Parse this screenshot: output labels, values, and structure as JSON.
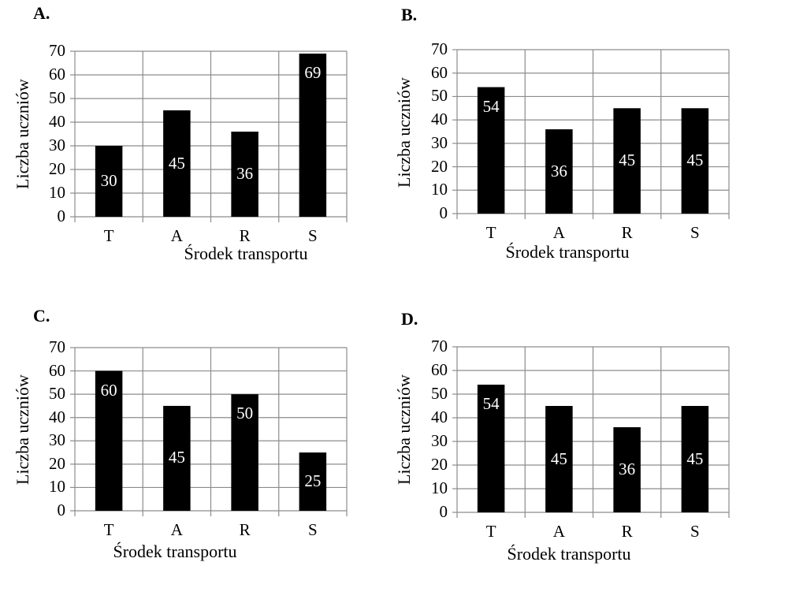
{
  "chart_data": [
    {
      "panel_label": "A.",
      "type": "bar",
      "categories": [
        "T",
        "A",
        "R",
        "S"
      ],
      "values": [
        30,
        45,
        36,
        69
      ],
      "data_labels": [
        "30",
        "45",
        "36",
        "69"
      ],
      "xlabel": "Środek transportu",
      "ylabel": "Liczba uczniów",
      "ylim": [
        0,
        70
      ],
      "yticks": [
        "0",
        "10",
        "20",
        "30",
        "40",
        "50",
        "60",
        "70"
      ],
      "grid": true,
      "bar_color": "#000000"
    },
    {
      "panel_label": "B.",
      "type": "bar",
      "categories": [
        "T",
        "A",
        "R",
        "S"
      ],
      "values": [
        54,
        36,
        45,
        45
      ],
      "data_labels": [
        "54",
        "36",
        "45",
        "45"
      ],
      "xlabel": "Środek transportu",
      "ylabel": "Liczba uczniów",
      "ylim": [
        0,
        70
      ],
      "yticks": [
        "0",
        "10",
        "20",
        "30",
        "40",
        "50",
        "60",
        "70"
      ],
      "grid": true,
      "bar_color": "#000000"
    },
    {
      "panel_label": "C.",
      "type": "bar",
      "categories": [
        "T",
        "A",
        "R",
        "S"
      ],
      "values": [
        60,
        45,
        50,
        25
      ],
      "data_labels": [
        "60",
        "45",
        "50",
        "25"
      ],
      "xlabel": "Środek transportu",
      "ylabel": "Liczba uczniów",
      "ylim": [
        0,
        70
      ],
      "yticks": [
        "0",
        "10",
        "20",
        "30",
        "40",
        "50",
        "60",
        "70"
      ],
      "grid": true,
      "bar_color": "#000000"
    },
    {
      "panel_label": "D.",
      "type": "bar",
      "categories": [
        "T",
        "A",
        "R",
        "S"
      ],
      "values": [
        54,
        45,
        36,
        45
      ],
      "data_labels": [
        "54",
        "45",
        "36",
        "45"
      ],
      "xlabel": "Środek transportu",
      "ylabel": "Liczba uczniów",
      "ylim": [
        0,
        70
      ],
      "yticks": [
        "0",
        "10",
        "20",
        "30",
        "40",
        "50",
        "60",
        "70"
      ],
      "grid": true,
      "bar_color": "#000000"
    }
  ]
}
